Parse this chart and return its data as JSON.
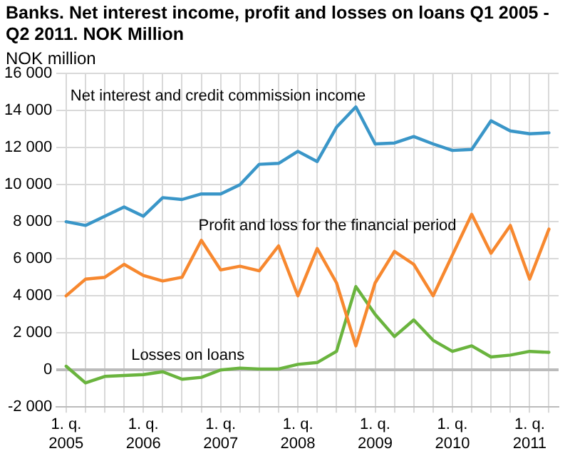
{
  "chart_data": {
    "type": "line",
    "title": "Banks. Net interest income, profit and losses on loans Q1 2005 - Q2 2011. NOK Million",
    "ylabel": "NOK million",
    "categories": [
      "1. q. 2005",
      null,
      null,
      null,
      "1. q. 2006",
      null,
      null,
      null,
      "1. q. 2007",
      null,
      null,
      null,
      "1. q. 2008",
      null,
      null,
      null,
      "1. q. 2009",
      null,
      null,
      null,
      "1. q. 2010",
      null,
      null,
      null,
      "1. q. 2011",
      null
    ],
    "series": [
      {
        "name": "Net interest and credit commission income",
        "color": "#3a96c8",
        "values": [
          8000,
          7800,
          8300,
          8800,
          8300,
          9300,
          9200,
          9500,
          9500,
          10000,
          11100,
          11150,
          11800,
          11250,
          13100,
          14200,
          12200,
          12250,
          12600,
          12200,
          11850,
          11900,
          13450,
          12900,
          12750,
          12800
        ]
      },
      {
        "name": "Profit and loss for the financial period",
        "color": "#f7882f",
        "values": [
          4000,
          4900,
          5000,
          5700,
          5100,
          4800,
          5000,
          7000,
          5400,
          5600,
          5350,
          6700,
          4000,
          6550,
          4700,
          1300,
          4700,
          6400,
          5700,
          4000,
          6200,
          8400,
          6300,
          7800,
          4900,
          7600
        ]
      },
      {
        "name": "Losses on loans",
        "color": "#6ab43e",
        "values": [
          200,
          -700,
          -350,
          -300,
          -250,
          -100,
          -500,
          -400,
          0,
          100,
          50,
          50,
          300,
          400,
          1000,
          4500,
          3000,
          1800,
          2700,
          1600,
          1000,
          1300,
          700,
          800,
          1000,
          950
        ]
      }
    ],
    "ylim": [
      -2000,
      16000
    ],
    "yticks": [
      {
        "value": -2000,
        "label": "-2 000"
      },
      0,
      {
        "value": 2000,
        "label": "2 000"
      },
      {
        "value": 4000,
        "label": "4 000"
      },
      {
        "value": 6000,
        "label": "6 000"
      },
      {
        "value": 8000,
        "label": "8 000"
      },
      {
        "value": 10000,
        "label": "10 000"
      },
      {
        "value": 12000,
        "label": "12 000"
      },
      {
        "value": 14000,
        "label": "14 000"
      },
      {
        "value": 16000,
        "label": "16 000"
      }
    ],
    "grid": true,
    "legend": false,
    "marker": "none",
    "line_style": "solid"
  }
}
